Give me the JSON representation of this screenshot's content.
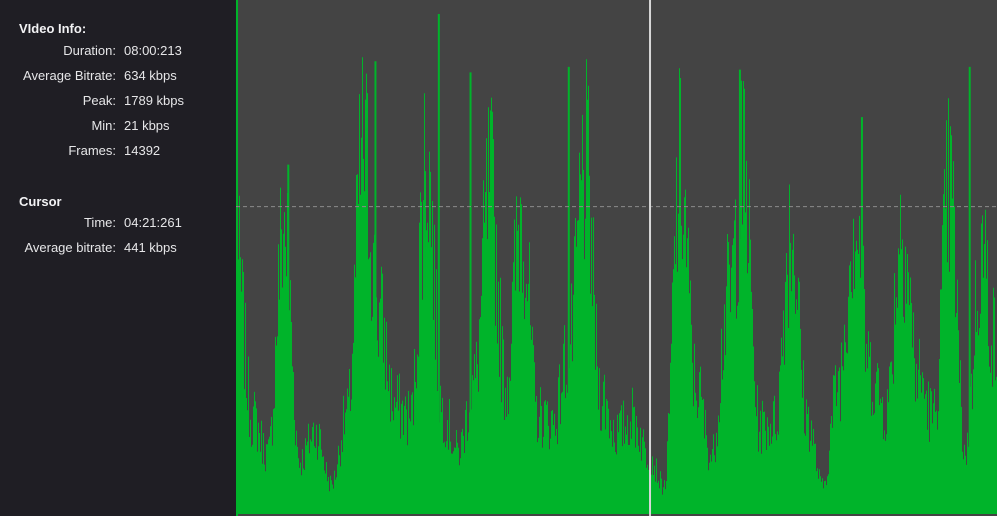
{
  "video_info": {
    "title": "VIdeo Info:",
    "rows": [
      {
        "label": "Duration:",
        "value": "08:00:213"
      },
      {
        "label": "Average Bitrate:",
        "value": "634 kbps"
      },
      {
        "label": "Peak:",
        "value": "1789 kbps"
      },
      {
        "label": "Min:",
        "value": "21 kbps"
      },
      {
        "label": "Frames:",
        "value": "14392"
      }
    ]
  },
  "cursor": {
    "title": "Cursor",
    "rows": [
      {
        "label": "Time:",
        "value": "04:21:261"
      },
      {
        "label": "Average bitrate:",
        "value": "441 kbps"
      }
    ]
  },
  "colors": {
    "sidebar_bg": "#1f1e24",
    "plot_bg": "#444444",
    "bar": "#00b42a",
    "cursor_line": "#d8d8d8",
    "avg_line": "#8a8a8a"
  },
  "chart_data": {
    "type": "area",
    "title": "",
    "xlabel": "",
    "ylabel": "",
    "x_unit": "seconds",
    "xlim": [
      0,
      480.213
    ],
    "ylim": [
      0,
      1789
    ],
    "grid": false,
    "legend": "none",
    "series": [
      {
        "x": [
          0,
          10,
          20,
          30,
          40,
          50,
          60,
          70,
          80,
          90,
          100,
          110,
          120,
          130,
          140,
          150,
          160,
          170,
          180,
          190,
          200,
          210,
          220,
          230,
          240,
          250,
          260,
          270,
          280,
          290,
          300,
          310,
          320,
          330,
          340,
          350,
          360,
          370,
          380,
          390,
          400,
          410,
          420,
          430,
          440,
          450,
          460,
          470,
          480
        ],
        "values": [
          1100,
          420,
          260,
          1250,
          230,
          360,
          130,
          430,
          1580,
          860,
          470,
          420,
          1560,
          450,
          270,
          560,
          1400,
          570,
          1320,
          430,
          400,
          720,
          1500,
          520,
          350,
          420,
          260,
          120,
          1470,
          560,
          250,
          920,
          1470,
          380,
          400,
          1260,
          420,
          120,
          580,
          1300,
          620,
          450,
          1270,
          600,
          420,
          1400,
          260,
          1130,
          710
        ]
      }
    ],
    "peak_markers": [
      {
        "x": 33,
        "y": 1250
      },
      {
        "x": 88,
        "y": 1620
      },
      {
        "x": 128,
        "y": 1789
      },
      {
        "x": 148,
        "y": 1580
      },
      {
        "x": 210,
        "y": 1600
      },
      {
        "x": 318,
        "y": 1590
      },
      {
        "x": 395,
        "y": 1420
      },
      {
        "x": 463,
        "y": 1600
      }
    ],
    "cursor": {
      "time": 261.261,
      "label": "04:21:261"
    },
    "reference_lines": [
      {
        "y": 1100,
        "style": "dashed"
      }
    ]
  }
}
